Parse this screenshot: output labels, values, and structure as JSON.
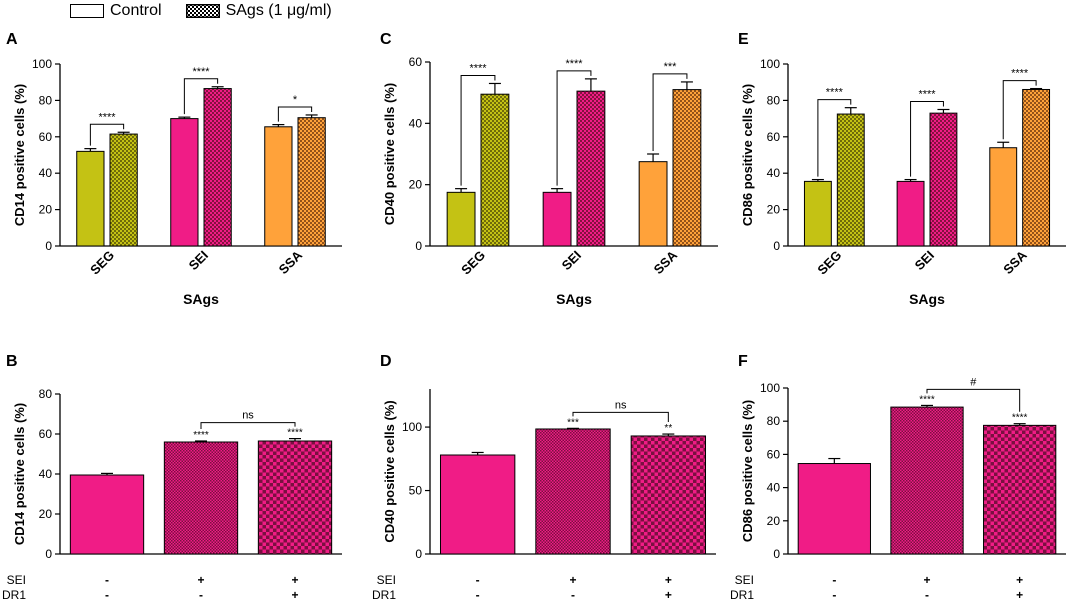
{
  "legend": {
    "control_label": "Control",
    "sags_label": "SAgs (1 μg/ml)"
  },
  "colors": {
    "seg": "#c4c214",
    "sei": "#f01c86",
    "ssa": "#ffa23a",
    "seg_dark": "#6f6b0a",
    "sei_dark": "#85113f",
    "ssa_dark": "#93521a",
    "sei_b": "#f01c86",
    "sei_b_dark": "#7a1040"
  },
  "chart_data": [
    {
      "panel": "A",
      "type": "bar",
      "ylabel": "CD14 positive cells (%)",
      "xlabel": "SAgs",
      "ylim": [
        0,
        100
      ],
      "yticks": [
        0,
        20,
        40,
        60,
        80,
        100
      ],
      "categories": [
        "SEG",
        "SEI",
        "SSA"
      ],
      "series": [
        {
          "name": "Control",
          "values": [
            52,
            70,
            65.5
          ],
          "errors": [
            1.5,
            0.8,
            1.2
          ]
        },
        {
          "name": "SAgs (1 μg/ml)",
          "values": [
            61.5,
            86.5,
            70.5
          ],
          "errors": [
            1,
            1,
            1.5
          ]
        }
      ],
      "significance": [
        "****",
        "****",
        "*"
      ]
    },
    {
      "panel": "C",
      "type": "bar",
      "ylabel": "CD40 positive cells (%)",
      "xlabel": "SAgs",
      "ylim": [
        0,
        60
      ],
      "yticks": [
        0,
        20,
        40,
        60
      ],
      "categories": [
        "SEG",
        "SEI",
        "SSA"
      ],
      "series": [
        {
          "name": "Control",
          "values": [
            17.5,
            17.5,
            27.5
          ],
          "errors": [
            1.2,
            1.2,
            2.5
          ]
        },
        {
          "name": "SAgs (1 μg/ml)",
          "values": [
            49.5,
            50.5,
            51
          ],
          "errors": [
            3.5,
            4,
            2.5
          ]
        }
      ],
      "significance": [
        "****",
        "****",
        "***"
      ]
    },
    {
      "panel": "E",
      "type": "bar",
      "ylabel": "CD86 positive cells (%)",
      "xlabel": "SAgs",
      "ylim": [
        0,
        100
      ],
      "yticks": [
        0,
        20,
        40,
        60,
        80,
        100
      ],
      "categories": [
        "SEG",
        "SEI",
        "SSA"
      ],
      "series": [
        {
          "name": "Control",
          "values": [
            35.5,
            35.5,
            54
          ],
          "errors": [
            1,
            1,
            3
          ]
        },
        {
          "name": "SAgs (1 μg/ml)",
          "values": [
            72.5,
            73,
            86
          ],
          "errors": [
            3.5,
            2,
            0.5
          ]
        }
      ],
      "significance": [
        "****",
        "****",
        "****"
      ]
    },
    {
      "panel": "B",
      "type": "bar",
      "ylabel": "CD14 positive cells (%)",
      "ylim": [
        0,
        80
      ],
      "yticks": [
        0,
        20,
        40,
        60,
        80
      ],
      "groups": [
        "control",
        "sei",
        "sei_dr1"
      ],
      "values": [
        39.5,
        56,
        56.5
      ],
      "errors": [
        0.8,
        0.5,
        1.2
      ],
      "bar_labels": [
        "",
        "****",
        "****"
      ],
      "compare_label": "ns",
      "row_labels": [
        "SEI",
        "DR1"
      ],
      "signs": [
        [
          "-",
          "+",
          "+"
        ],
        [
          "-",
          "-",
          "+"
        ]
      ]
    },
    {
      "panel": "D",
      "type": "bar",
      "ylabel": "CD40 positive cells (%)",
      "ylim": [
        0,
        130
      ],
      "yticks": [
        0,
        50,
        100
      ],
      "groups": [
        "control",
        "sei",
        "sei_dr1"
      ],
      "values": [
        78,
        98.5,
        93
      ],
      "errors": [
        2,
        0.5,
        1.5
      ],
      "bar_labels": [
        "",
        "***",
        "**"
      ],
      "compare_label": "ns",
      "row_labels": [
        "SEI",
        "DR1"
      ],
      "signs": [
        [
          "-",
          "+",
          "+"
        ],
        [
          "-",
          "-",
          "+"
        ]
      ]
    },
    {
      "panel": "F",
      "type": "bar",
      "ylabel": "CD86 positive cells (%)",
      "ylim": [
        0,
        100
      ],
      "yticks": [
        0,
        20,
        40,
        60,
        80,
        100
      ],
      "groups": [
        "control",
        "sei",
        "sei_dr1"
      ],
      "values": [
        54.5,
        88.5,
        77.5
      ],
      "errors": [
        3,
        1,
        1
      ],
      "bar_labels": [
        "",
        "****",
        "****"
      ],
      "compare_label": "#",
      "row_labels": [
        "SEI",
        "DR1"
      ],
      "signs": [
        [
          "-",
          "+",
          "+"
        ],
        [
          "-",
          "-",
          "+"
        ]
      ]
    }
  ]
}
